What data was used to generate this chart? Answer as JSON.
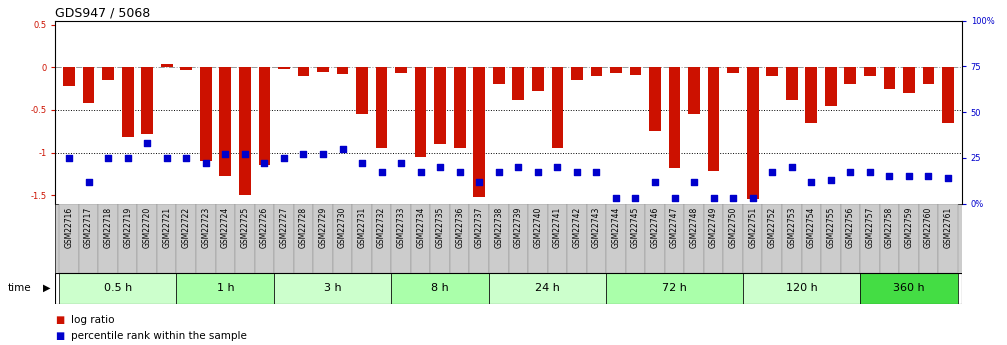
{
  "title": "GDS947 / 5068",
  "samples": [
    "GSM22716",
    "GSM22717",
    "GSM22718",
    "GSM22719",
    "GSM22720",
    "GSM22721",
    "GSM22722",
    "GSM22723",
    "GSM22724",
    "GSM22725",
    "GSM22726",
    "GSM22727",
    "GSM22728",
    "GSM22729",
    "GSM22730",
    "GSM22731",
    "GSM22732",
    "GSM22733",
    "GSM22734",
    "GSM22735",
    "GSM22736",
    "GSM22737",
    "GSM22738",
    "GSM22739",
    "GSM22740",
    "GSM22741",
    "GSM22742",
    "GSM22743",
    "GSM22744",
    "GSM22745",
    "GSM22746",
    "GSM22747",
    "GSM22748",
    "GSM22749",
    "GSM22750",
    "GSM22751",
    "GSM22752",
    "GSM22753",
    "GSM22754",
    "GSM22755",
    "GSM22756",
    "GSM22757",
    "GSM22758",
    "GSM22759",
    "GSM22760",
    "GSM22761"
  ],
  "log_ratio": [
    -0.22,
    -0.42,
    -0.15,
    -0.82,
    -0.78,
    0.04,
    -0.03,
    -1.1,
    -1.28,
    -1.5,
    -1.15,
    -0.02,
    -0.1,
    -0.05,
    -0.08,
    -0.55,
    -0.95,
    -0.06,
    -1.05,
    -0.9,
    -0.95,
    -1.52,
    -0.2,
    -0.38,
    -0.28,
    -0.95,
    -0.15,
    -0.1,
    -0.07,
    -0.09,
    -0.75,
    -1.18,
    -0.55,
    -1.22,
    -0.06,
    -1.55,
    -0.1,
    -0.38,
    -0.65,
    -0.45,
    -0.2,
    -0.1,
    -0.25,
    -0.3,
    -0.2,
    -0.65
  ],
  "percentile_rank": [
    25,
    12,
    25,
    25,
    33,
    25,
    25,
    22,
    27,
    27,
    22,
    25,
    27,
    27,
    30,
    22,
    17,
    22,
    17,
    20,
    17,
    12,
    17,
    20,
    17,
    20,
    17,
    17,
    3,
    3,
    12,
    3,
    12,
    3,
    3,
    3,
    17,
    20,
    12,
    13,
    17,
    17,
    15,
    15,
    15,
    14
  ],
  "time_groups": [
    {
      "label": "0.5 h",
      "start": 0,
      "end": 6,
      "color": "#ccffcc"
    },
    {
      "label": "1 h",
      "start": 6,
      "end": 11,
      "color": "#aaffaa"
    },
    {
      "label": "3 h",
      "start": 11,
      "end": 17,
      "color": "#ccffcc"
    },
    {
      "label": "8 h",
      "start": 17,
      "end": 22,
      "color": "#aaffaa"
    },
    {
      "label": "24 h",
      "start": 22,
      "end": 28,
      "color": "#ccffcc"
    },
    {
      "label": "72 h",
      "start": 28,
      "end": 35,
      "color": "#aaffaa"
    },
    {
      "label": "120 h",
      "start": 35,
      "end": 41,
      "color": "#ccffcc"
    },
    {
      "label": "360 h",
      "start": 41,
      "end": 46,
      "color": "#44dd44"
    }
  ],
  "ylim_left": [
    -1.6,
    0.55
  ],
  "ylim_right": [
    0,
    100
  ],
  "bar_color": "#cc1100",
  "dot_color": "#0000cc",
  "title_fontsize": 9,
  "tick_fontsize": 6,
  "label_fontsize": 5.5,
  "legend_fontsize": 7.5,
  "time_fontsize": 8
}
